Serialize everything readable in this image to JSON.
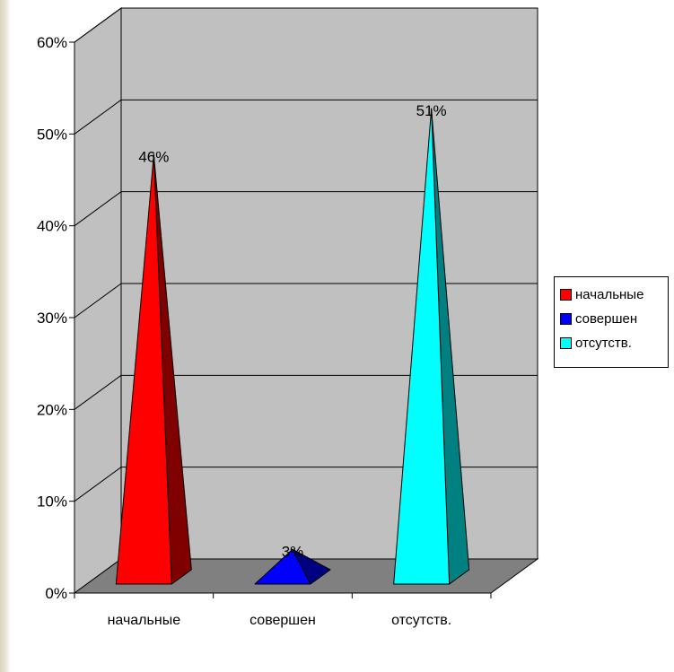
{
  "chart_data": {
    "type": "bar",
    "bar_shape": "pyramid",
    "categories": [
      "начальные",
      "совершен",
      "отсутств."
    ],
    "values": [
      46,
      3,
      51
    ],
    "data_labels": [
      "46%",
      "3%",
      "51%"
    ],
    "colors": [
      "#ff0000",
      "#0000ff",
      "#00ffff"
    ],
    "ylim": [
      0,
      60
    ],
    "yticks": [
      "0%",
      "10%",
      "20%",
      "30%",
      "40%",
      "50%",
      "60%"
    ],
    "grid": true,
    "legend_position": "right",
    "legend": [
      {
        "label": "начальные",
        "color": "#ff0000"
      },
      {
        "label": "совершен",
        "color": "#0000ff"
      },
      {
        "label": "отсутств.",
        "color": "#00ffff"
      }
    ],
    "wall_color": "#c0c0c0",
    "floor_color": "#808080"
  }
}
